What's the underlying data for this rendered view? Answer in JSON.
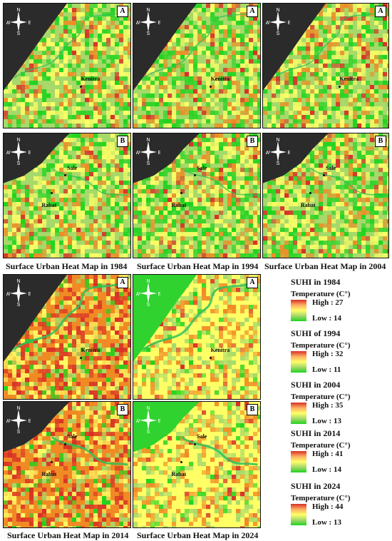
{
  "compass": {
    "n": "N",
    "s": "S",
    "e": "E",
    "w": "W"
  },
  "panels": [
    {
      "tag": "A",
      "city1": "Kenitra",
      "city2": "",
      "style": "1984"
    },
    {
      "tag": "A",
      "city1": "Kenitra",
      "city2": "",
      "style": "1994"
    },
    {
      "tag": "A",
      "city1": "Kenitra",
      "city2": "",
      "style": "2004"
    },
    {
      "tag": "B",
      "city1": "Sale",
      "city2": "Rabat",
      "style": "1984"
    },
    {
      "tag": "B",
      "city1": "Sale",
      "city2": "Rabat",
      "style": "1994"
    },
    {
      "tag": "B",
      "city1": "Sale",
      "city2": "Rabat",
      "style": "2004"
    },
    {
      "tag": "A",
      "city1": "Kenitra",
      "city2": "",
      "style": "2014"
    },
    {
      "tag": "A",
      "city1": "Kenitra",
      "city2": "",
      "style": "2024"
    },
    {
      "tag": "B",
      "city1": "Sale",
      "city2": "Rabat",
      "style": "2014"
    },
    {
      "tag": "B",
      "city1": "Sale",
      "city2": "Rabat",
      "style": "2024"
    }
  ],
  "captions": [
    "Surface Urban Heat Map in 1984",
    "Surface Urban Heat Map in 1994",
    "Surface Urban Heat Map in 2004",
    "Surface Urban Heat Map in 2014",
    "Surface Urban Heat Map in 2024"
  ],
  "legend": [
    {
      "title": "SUHI in 1984",
      "sub": "Temperature (C°)",
      "high": "High : 27",
      "low": "Low : 14"
    },
    {
      "title": "SUHI of 1994",
      "sub": "Temperature (C°)",
      "high": "High : 32",
      "low": "Low : 11"
    },
    {
      "title": "SUHI in 2004",
      "sub": "Temperature (C°)",
      "high": "High : 35",
      "low": "Low : 13"
    },
    {
      "title": "SUHI in 2014",
      "sub": "Temperature (C°)",
      "high": "High : 41",
      "low": "Low : 14"
    },
    {
      "title": "SUHI in 2024",
      "sub": "Temperature (C°)",
      "high": "High : 44",
      "low": "Low : 13"
    }
  ],
  "colors": {
    "sea_dark": "#2b2b2b",
    "sea_green": "#2fd22f",
    "hot": "#d73027",
    "warm": "#f08a24",
    "mid": "#ffff66",
    "cool": "#a6d96a",
    "cold": "#1fd31f",
    "river": "#2fbf5a"
  }
}
